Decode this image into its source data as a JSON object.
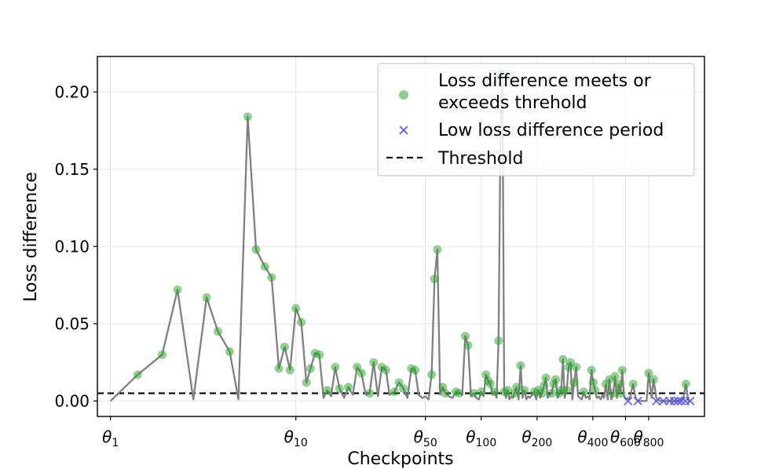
{
  "chart_data": {
    "type": "line",
    "xlabel": "Checkpoints",
    "ylabel": "Loss difference",
    "ylim": [
      -0.01,
      0.223
    ],
    "x_scale": "log",
    "xlim": [
      0.85,
      1600
    ],
    "grid": true,
    "threshold": 0.005,
    "x_ticks": [
      {
        "value": 1,
        "label": "θ",
        "sub": "1"
      },
      {
        "value": 10,
        "label": "θ",
        "sub": "10"
      },
      {
        "value": 50,
        "label": "θ",
        "sub": "50"
      },
      {
        "value": 100,
        "label": "θ",
        "sub": "100"
      },
      {
        "value": 200,
        "label": "θ",
        "sub": "200"
      },
      {
        "value": 400,
        "label": "θ",
        "sub": "400"
      },
      {
        "value": 600,
        "label": "θ",
        "sub": "600"
      },
      {
        "value": 800,
        "label": "θ",
        "sub": "800"
      }
    ],
    "y_ticks": [
      {
        "value": 0.0,
        "label": "0.00"
      },
      {
        "value": 0.05,
        "label": "0.05"
      },
      {
        "value": 0.1,
        "label": "0.10"
      },
      {
        "value": 0.15,
        "label": "0.15"
      },
      {
        "value": 0.2,
        "label": "0.20"
      }
    ],
    "legend": {
      "position": "top-right",
      "entries": [
        {
          "key": "meets",
          "label_lines": [
            "Loss difference meets or",
            "exceeds threhold"
          ],
          "marker": "circle",
          "color": "#2ca02c"
        },
        {
          "key": "low",
          "label_lines": [
            "Low loss difference period"
          ],
          "marker": "x",
          "color": "#5b5bd6"
        },
        {
          "key": "threshold",
          "label_lines": [
            "Threshold"
          ],
          "marker": "dashed-line",
          "color": "#000000"
        }
      ]
    },
    "colors": {
      "line": "#808080",
      "meets": "#2ca02c",
      "low": "#5b5bd6",
      "threshold": "#000000",
      "grid": "#e5e5e5"
    },
    "series": {
      "loss_curve": [
        [
          1,
          0
        ],
        [
          1.4,
          0.017
        ],
        [
          1.9,
          0.03
        ],
        [
          2.3,
          0.072
        ],
        [
          2.8,
          0.001
        ],
        [
          3.3,
          0.067
        ],
        [
          3.8,
          0.045
        ],
        [
          4.4,
          0.032
        ],
        [
          4.9,
          0.001
        ],
        [
          5.5,
          0.184
        ],
        [
          6.1,
          0.098
        ],
        [
          6.8,
          0.087
        ],
        [
          7.4,
          0.08
        ],
        [
          8.1,
          0.021
        ],
        [
          8.7,
          0.035
        ],
        [
          9.3,
          0.02
        ],
        [
          10,
          0.06
        ],
        [
          10.7,
          0.051
        ],
        [
          11.4,
          0.012
        ],
        [
          12,
          0.021
        ],
        [
          12.7,
          0.031
        ],
        [
          13.4,
          0.03
        ],
        [
          14.1,
          0.002
        ],
        [
          14.8,
          0.007
        ],
        [
          15.5,
          0.003
        ],
        [
          16.3,
          0.022
        ],
        [
          17.2,
          0.008
        ],
        [
          18.2,
          0.002
        ],
        [
          19.2,
          0.009
        ],
        [
          20.3,
          0.004
        ],
        [
          21.4,
          0.022
        ],
        [
          22.6,
          0.018
        ],
        [
          23.8,
          0.004
        ],
        [
          25,
          0.005
        ],
        [
          26.3,
          0.025
        ],
        [
          27.7,
          0.003
        ],
        [
          29.1,
          0.022
        ],
        [
          30.6,
          0.02
        ],
        [
          32,
          0.004
        ],
        [
          34,
          0.006
        ],
        [
          36,
          0.012
        ],
        [
          38,
          0.008
        ],
        [
          40,
          0.002
        ],
        [
          42,
          0.021
        ],
        [
          44,
          0.02
        ],
        [
          46,
          0.004
        ],
        [
          48,
          0.002
        ],
        [
          50,
          0.003
        ],
        [
          52,
          0.001
        ],
        [
          54,
          0.017
        ],
        [
          56,
          0.079
        ],
        [
          58,
          0.098
        ],
        [
          60,
          0.004
        ],
        [
          62,
          0.009
        ],
        [
          64,
          0.005
        ],
        [
          67,
          0.003
        ],
        [
          70,
          0.002
        ],
        [
          73,
          0.006
        ],
        [
          76,
          0.005
        ],
        [
          79,
          0.004
        ],
        [
          82,
          0.042
        ],
        [
          85,
          0.036
        ],
        [
          88,
          0.003
        ],
        [
          91,
          0.005
        ],
        [
          94,
          0.002
        ],
        [
          97,
          0.001
        ],
        [
          100,
          0.006
        ],
        [
          103,
          0.003
        ],
        [
          106,
          0.017
        ],
        [
          109,
          0.013
        ],
        [
          112,
          0.011
        ],
        [
          115,
          0.004
        ],
        [
          118,
          0.006
        ],
        [
          121,
          0.002
        ],
        [
          124,
          0.039
        ],
        [
          127,
          0.176
        ],
        [
          130,
          0.212
        ],
        [
          133,
          0.006
        ],
        [
          136,
          0.002
        ],
        [
          139,
          0.007
        ],
        [
          142,
          0.001
        ],
        [
          145,
          0.003
        ],
        [
          148,
          0.002
        ],
        [
          151,
          0.005
        ],
        [
          155,
          0.009
        ],
        [
          159,
          0.001
        ],
        [
          163,
          0.023
        ],
        [
          167,
          0.002
        ],
        [
          171,
          0.007
        ],
        [
          175,
          0.001
        ],
        [
          179,
          0.003
        ],
        [
          183,
          0.002
        ],
        [
          188,
          0.004
        ],
        [
          193,
          0.006
        ],
        [
          198,
          0.001
        ],
        [
          203,
          0.007
        ],
        [
          208,
          0.002
        ],
        [
          213,
          0.005
        ],
        [
          218,
          0.01
        ],
        [
          223,
          0.015
        ],
        [
          228,
          0.002
        ],
        [
          234,
          0.004
        ],
        [
          240,
          0.005
        ],
        [
          246,
          0.011
        ],
        [
          252,
          0.014
        ],
        [
          258,
          0.002
        ],
        [
          264,
          0.005
        ],
        [
          270,
          0.007
        ],
        [
          276,
          0.027
        ],
        [
          282,
          0.002
        ],
        [
          289,
          0.007
        ],
        [
          296,
          0.022
        ],
        [
          303,
          0.025
        ],
        [
          310,
          0.001
        ],
        [
          317,
          0.012
        ],
        [
          325,
          0.022
        ],
        [
          333,
          0.003
        ],
        [
          341,
          0.002
        ],
        [
          349,
          0.001
        ],
        [
          357,
          0.006
        ],
        [
          366,
          0.002
        ],
        [
          375,
          0.003
        ],
        [
          384,
          0.001
        ],
        [
          393,
          0.02
        ],
        [
          402,
          0.012
        ],
        [
          411,
          0.007
        ],
        [
          420,
          0.002
        ],
        [
          430,
          0.003
        ],
        [
          440,
          0.001
        ],
        [
          450,
          0.004
        ],
        [
          460,
          0.002
        ],
        [
          470,
          0.011
        ],
        [
          481,
          0.001
        ],
        [
          492,
          0.014
        ],
        [
          503,
          0.001
        ],
        [
          515,
          0.005
        ],
        [
          527,
          0.016
        ],
        [
          539,
          0.002
        ],
        [
          551,
          0.011
        ],
        [
          563,
          0.005
        ],
        [
          576,
          0.02
        ],
        [
          589,
          0.003
        ],
        [
          602,
          0.001
        ],
        [
          615,
          0.002
        ],
        [
          630,
          0.001
        ],
        [
          660,
          0.011
        ],
        [
          680,
          0.002
        ],
        [
          700,
          0.0
        ],
        [
          740,
          0.0
        ],
        [
          780,
          0.0
        ],
        [
          800,
          0.018
        ],
        [
          830,
          0.002
        ],
        [
          850,
          0.014
        ],
        [
          880,
          0.002
        ],
        [
          920,
          0.0
        ],
        [
          960,
          0.0
        ],
        [
          1000,
          0.0
        ],
        [
          1040,
          0.0
        ],
        [
          1080,
          0.0
        ],
        [
          1120,
          0.0
        ],
        [
          1150,
          0.0
        ],
        [
          1190,
          0.0
        ],
        [
          1230,
          0.002
        ],
        [
          1270,
          0.011
        ],
        [
          1310,
          0.0
        ],
        [
          1350,
          0.0
        ]
      ],
      "meets_points": [
        [
          1.4,
          0.017
        ],
        [
          1.9,
          0.03
        ],
        [
          2.3,
          0.072
        ],
        [
          3.3,
          0.067
        ],
        [
          3.8,
          0.045
        ],
        [
          4.4,
          0.032
        ],
        [
          5.5,
          0.184
        ],
        [
          6.1,
          0.098
        ],
        [
          6.8,
          0.087
        ],
        [
          7.4,
          0.08
        ],
        [
          8.1,
          0.021
        ],
        [
          8.7,
          0.035
        ],
        [
          9.3,
          0.02
        ],
        [
          10,
          0.06
        ],
        [
          10.7,
          0.051
        ],
        [
          11.4,
          0.012
        ],
        [
          12,
          0.021
        ],
        [
          12.7,
          0.031
        ],
        [
          13.4,
          0.03
        ],
        [
          14.8,
          0.007
        ],
        [
          16.3,
          0.022
        ],
        [
          17.2,
          0.008
        ],
        [
          19.2,
          0.009
        ],
        [
          21.4,
          0.022
        ],
        [
          22.6,
          0.018
        ],
        [
          25,
          0.005
        ],
        [
          26.3,
          0.025
        ],
        [
          29.1,
          0.022
        ],
        [
          30.6,
          0.02
        ],
        [
          34,
          0.006
        ],
        [
          36,
          0.012
        ],
        [
          38,
          0.008
        ],
        [
          42,
          0.021
        ],
        [
          44,
          0.02
        ],
        [
          54,
          0.017
        ],
        [
          56,
          0.079
        ],
        [
          58,
          0.098
        ],
        [
          62,
          0.009
        ],
        [
          64,
          0.005
        ],
        [
          73,
          0.006
        ],
        [
          76,
          0.005
        ],
        [
          82,
          0.042
        ],
        [
          85,
          0.036
        ],
        [
          91,
          0.005
        ],
        [
          100,
          0.006
        ],
        [
          106,
          0.017
        ],
        [
          109,
          0.013
        ],
        [
          112,
          0.011
        ],
        [
          118,
          0.006
        ],
        [
          124,
          0.039
        ],
        [
          127,
          0.176
        ],
        [
          130,
          0.212
        ],
        [
          133,
          0.006
        ],
        [
          139,
          0.007
        ],
        [
          151,
          0.005
        ],
        [
          155,
          0.009
        ],
        [
          163,
          0.023
        ],
        [
          171,
          0.007
        ],
        [
          193,
          0.006
        ],
        [
          203,
          0.007
        ],
        [
          213,
          0.005
        ],
        [
          218,
          0.01
        ],
        [
          223,
          0.015
        ],
        [
          240,
          0.005
        ],
        [
          246,
          0.011
        ],
        [
          252,
          0.014
        ],
        [
          264,
          0.005
        ],
        [
          270,
          0.007
        ],
        [
          276,
          0.027
        ],
        [
          289,
          0.007
        ],
        [
          296,
          0.022
        ],
        [
          303,
          0.025
        ],
        [
          317,
          0.012
        ],
        [
          325,
          0.022
        ],
        [
          357,
          0.006
        ],
        [
          393,
          0.02
        ],
        [
          402,
          0.012
        ],
        [
          411,
          0.007
        ],
        [
          470,
          0.011
        ],
        [
          492,
          0.014
        ],
        [
          515,
          0.005
        ],
        [
          527,
          0.016
        ],
        [
          551,
          0.011
        ],
        [
          563,
          0.005
        ],
        [
          576,
          0.02
        ],
        [
          660,
          0.011
        ],
        [
          800,
          0.018
        ],
        [
          850,
          0.014
        ],
        [
          1270,
          0.011
        ]
      ],
      "low_points": [
        [
          620,
          0.0
        ],
        [
          700,
          0.0
        ],
        [
          880,
          0.0
        ],
        [
          960,
          0.0
        ],
        [
          1040,
          0.0
        ],
        [
          1100,
          0.0
        ],
        [
          1150,
          0.0
        ],
        [
          1200,
          0.0
        ],
        [
          1260,
          0.0
        ],
        [
          1340,
          0.0
        ]
      ]
    }
  }
}
